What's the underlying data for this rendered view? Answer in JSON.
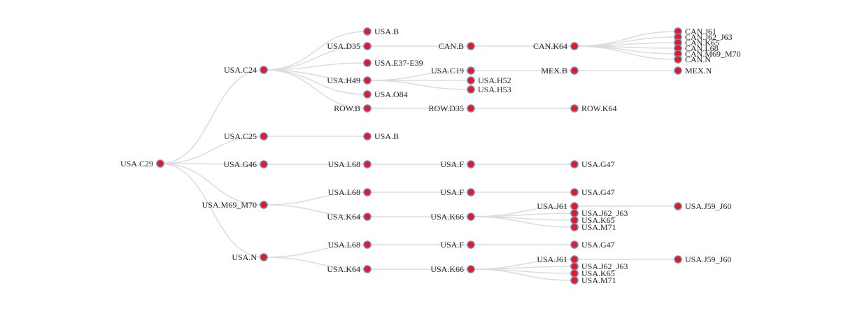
{
  "tree": {
    "label": "USA.C29",
    "children": [
      {
        "label": "USA.C24",
        "children": [
          {
            "label": "USA.B"
          },
          {
            "label": "USA.D35",
            "children": [
              {
                "label": "CAN.B",
                "children": [
                  {
                    "label": "CAN.K64",
                    "children": [
                      {
                        "label": "CAN.J61"
                      },
                      {
                        "label": "CAN.J62_J63"
                      },
                      {
                        "label": "CAN.K65"
                      },
                      {
                        "label": "CAN.L68"
                      },
                      {
                        "label": "CAN.M69_M70"
                      },
                      {
                        "label": "CAN.N"
                      }
                    ]
                  }
                ]
              }
            ]
          },
          {
            "label": "USA.E37-E39"
          },
          {
            "label": "USA.H49",
            "children": [
              {
                "label": "USA.C19",
                "children": [
                  {
                    "label": "MEX.B",
                    "children": [
                      {
                        "label": "MEX.N"
                      }
                    ]
                  }
                ]
              },
              {
                "label": "USA.H52"
              },
              {
                "label": "USA.H53"
              }
            ]
          },
          {
            "label": "USA.O84"
          },
          {
            "label": "ROW.B",
            "children": [
              {
                "label": "ROW.D35",
                "children": [
                  {
                    "label": "ROW.K64"
                  }
                ]
              }
            ]
          }
        ]
      },
      {
        "label": "USA.C25",
        "children": [
          {
            "label": "USA.B"
          }
        ]
      },
      {
        "label": "USA.G46",
        "children": [
          {
            "label": "USA.L68",
            "children": [
              {
                "label": "USA.F",
                "children": [
                  {
                    "label": "USA.G47"
                  }
                ]
              }
            ]
          }
        ]
      },
      {
        "label": "USA.M69_M70",
        "children": [
          {
            "label": "USA.L68",
            "children": [
              {
                "label": "USA.F",
                "children": [
                  {
                    "label": "USA.G47"
                  }
                ]
              }
            ]
          },
          {
            "label": "USA.K64",
            "children": [
              {
                "label": "USA.K66",
                "children": [
                  {
                    "label": "USA.J61",
                    "children": [
                      {
                        "label": "USA.J59_J60"
                      }
                    ]
                  },
                  {
                    "label": "USA.J62_J63"
                  },
                  {
                    "label": "USA.K65"
                  },
                  {
                    "label": "USA.M71"
                  }
                ]
              }
            ]
          }
        ]
      },
      {
        "label": "USA.N",
        "children": [
          {
            "label": "USA.L68",
            "children": [
              {
                "label": "USA.F",
                "children": [
                  {
                    "label": "USA.G47"
                  }
                ]
              }
            ]
          },
          {
            "label": "USA.K64",
            "children": [
              {
                "label": "USA.K66",
                "children": [
                  {
                    "label": "USA.J61",
                    "children": [
                      {
                        "label": "USA.J59_J60"
                      }
                    ]
                  },
                  {
                    "label": "USA.J62_J63"
                  },
                  {
                    "label": "USA.K65"
                  },
                  {
                    "label": "USA.M71"
                  }
                ]
              }
            ]
          }
        ]
      }
    ]
  },
  "colors": {
    "node_fill": "#f0141e",
    "node_stroke": "#6a8ec0",
    "link": "#dcdcdc",
    "label": "#222222"
  }
}
